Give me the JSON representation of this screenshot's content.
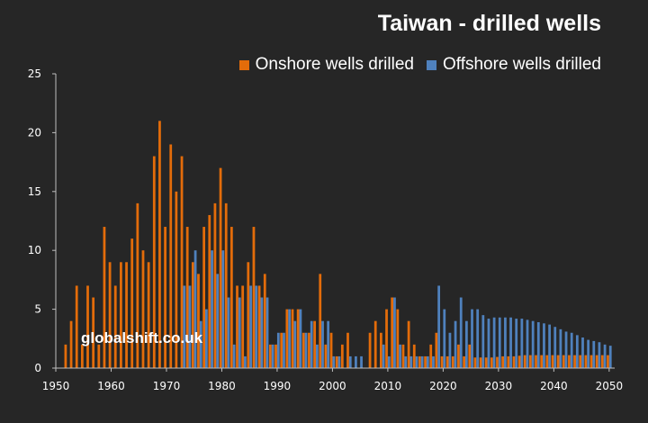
{
  "chart_data": {
    "type": "bar",
    "title": "Taiwan - drilled wells",
    "watermark": "globalshift.co.uk",
    "xlabel": "",
    "ylabel": "",
    "ylim": [
      0,
      25
    ],
    "xlim": [
      1950,
      2051
    ],
    "y_ticks": [
      0,
      5,
      10,
      15,
      20,
      25
    ],
    "x_ticks": [
      1950,
      1960,
      1970,
      1980,
      1990,
      2000,
      2010,
      2020,
      2030,
      2040,
      2050
    ],
    "legend_position": "top-right",
    "series": [
      {
        "name": "Onshore wells drilled",
        "color": "#E36C0A",
        "years": [
          1952,
          1953,
          1954,
          1955,
          1956,
          1957,
          1958,
          1959,
          1960,
          1961,
          1962,
          1963,
          1964,
          1965,
          1966,
          1967,
          1968,
          1969,
          1970,
          1971,
          1972,
          1973,
          1974,
          1975,
          1976,
          1977,
          1978,
          1979,
          1980,
          1981,
          1982,
          1983,
          1984,
          1985,
          1986,
          1987,
          1988,
          1989,
          1990,
          1991,
          1992,
          1993,
          1994,
          1995,
          1996,
          1997,
          1998,
          1999,
          2000,
          2001,
          2002,
          2003,
          2004,
          2005,
          2006,
          2007,
          2008,
          2009,
          2010,
          2011,
          2012,
          2013,
          2014,
          2015,
          2016,
          2017,
          2018,
          2019,
          2020,
          2021,
          2022,
          2023,
          2024,
          2025,
          2026,
          2027,
          2028,
          2029,
          2030,
          2031,
          2032,
          2033,
          2034,
          2035,
          2036,
          2037,
          2038,
          2039,
          2040,
          2041,
          2042,
          2043,
          2044,
          2045,
          2046,
          2047,
          2048,
          2049,
          2050
        ],
        "values": [
          2,
          4,
          7,
          2,
          7,
          6,
          2,
          12,
          9,
          7,
          9,
          9,
          11,
          14,
          10,
          9,
          18,
          21,
          12,
          19,
          15,
          18,
          12,
          9,
          8,
          12,
          13,
          14,
          17,
          14,
          12,
          7,
          7,
          9,
          12,
          7,
          8,
          2,
          2,
          3,
          5,
          5,
          5,
          3,
          3,
          4,
          8,
          2,
          3,
          1,
          2,
          3,
          0,
          0,
          0,
          3,
          4,
          3,
          5,
          6,
          5,
          2,
          4,
          2,
          1,
          1,
          2,
          3,
          1,
          1,
          1,
          2,
          1,
          2,
          0.9,
          0.9,
          0.9,
          0.9,
          0.95,
          1,
          1,
          1,
          1.05,
          1.1,
          1.1,
          1.1,
          1.1,
          1.1,
          1.1,
          1.1,
          1.1,
          1.1,
          1.1,
          1.1,
          1.1,
          1.1,
          1.1,
          1.1,
          1.1
        ]
      },
      {
        "name": "Offshore wells drilled",
        "color": "#4F81BD",
        "years": [
          1973,
          1974,
          1975,
          1976,
          1977,
          1978,
          1979,
          1980,
          1981,
          1982,
          1983,
          1984,
          1985,
          1986,
          1987,
          1988,
          1989,
          1990,
          1991,
          1992,
          1993,
          1994,
          1995,
          1996,
          1997,
          1998,
          1999,
          2000,
          2001,
          2002,
          2003,
          2004,
          2005,
          2006,
          2007,
          2008,
          2009,
          2010,
          2011,
          2012,
          2013,
          2014,
          2015,
          2016,
          2017,
          2018,
          2019,
          2020,
          2021,
          2022,
          2023,
          2024,
          2025,
          2026,
          2027,
          2028,
          2029,
          2030,
          2031,
          2032,
          2033,
          2034,
          2035,
          2036,
          2037,
          2038,
          2039,
          2040,
          2041,
          2042,
          2043,
          2044,
          2045,
          2046,
          2047,
          2048,
          2049,
          2050
        ],
        "values": [
          7,
          7,
          10,
          4,
          5,
          10,
          8,
          10,
          6,
          2,
          6,
          1,
          7,
          7,
          6,
          6,
          2,
          3,
          3,
          5,
          4,
          5,
          3,
          4,
          2,
          4,
          4,
          1,
          1,
          0,
          1,
          1,
          1,
          0,
          0,
          0,
          2,
          1,
          6,
          2,
          1,
          1,
          1,
          1,
          1,
          1,
          7,
          5,
          3,
          4,
          6,
          4,
          5,
          5,
          4.5,
          4.2,
          4.3,
          4.3,
          4.3,
          4.3,
          4.2,
          4.2,
          4.1,
          4.0,
          3.9,
          3.8,
          3.7,
          3.5,
          3.3,
          3.1,
          3.0,
          2.8,
          2.6,
          2.4,
          2.3,
          2.2,
          2.0,
          1.9
        ]
      }
    ]
  }
}
